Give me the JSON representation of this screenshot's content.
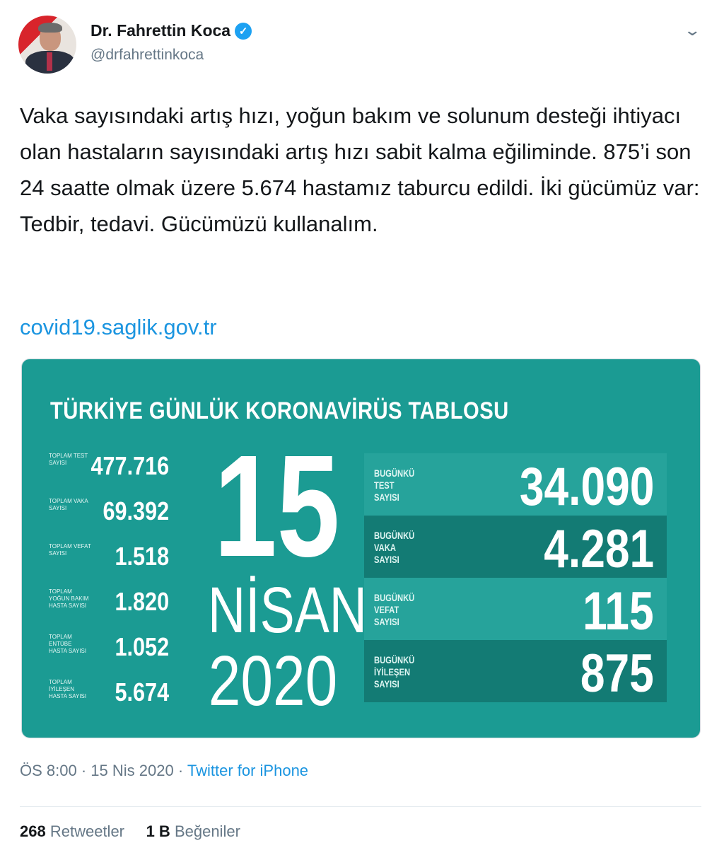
{
  "author": {
    "name": "Dr. Fahrettin Koca",
    "handle": "@drfahrettinkoca",
    "verified": true
  },
  "icons": {
    "verified": "verified-badge-icon",
    "menu": "chevron-down-icon"
  },
  "tweet": {
    "text": "Vaka sayısındaki artış hızı, yoğun bakım ve solunum desteği ihtiyacı olan hastaların sayısındaki artış hızı sabit kalma eğiliminde. 875’i son 24 saatte olmak üzere 5.674 hastamız taburcu edildi. İki gücümüz var: Tedbir, tedavi. Gücümüzü kullanalım.",
    "link": "covid19.saglik.gov.tr"
  },
  "infographic": {
    "title": "TÜRKİYE GÜNLÜK KORONAVİRÜS TABLOSU",
    "day": "15",
    "month": "NİSAN",
    "year": "2020",
    "totals": [
      {
        "label": "TOPLAM TEST SAYISI",
        "value": "477.716"
      },
      {
        "label": "TOPLAM VAKA SAYISI",
        "value": "69.392"
      },
      {
        "label": "TOPLAM VEFAT SAYISI",
        "value": "1.518"
      },
      {
        "label": "TOPLAM YOĞUN BAKIM HASTA SAYISI",
        "value": "1.820"
      },
      {
        "label": "TOPLAM ENTÜBE HASTA SAYISI",
        "value": "1.052"
      },
      {
        "label": "TOPLAM İYİLEŞEN HASTA SAYISI",
        "value": "5.674"
      }
    ],
    "today": [
      {
        "label": "BUGÜNKÜ TEST SAYISI",
        "value": "34.090"
      },
      {
        "label": "BUGÜNKÜ VAKA SAYISI",
        "value": "4.281"
      },
      {
        "label": "BUGÜNKÜ VEFAT SAYISI",
        "value": "115"
      },
      {
        "label": "BUGÜNKÜ İYİLEŞEN SAYISI",
        "value": "875"
      }
    ],
    "colors": {
      "background": "#1b9b93",
      "row_light": "#26a39b",
      "row_dark": "#137b74"
    }
  },
  "meta": {
    "time": "ÖS 8:00",
    "date": "15 Nis 2020",
    "source": "Twitter for iPhone"
  },
  "stats": {
    "retweets": "268",
    "retweets_label": "Retweetler",
    "likes": "1 B",
    "likes_label": "Beğeniler"
  }
}
